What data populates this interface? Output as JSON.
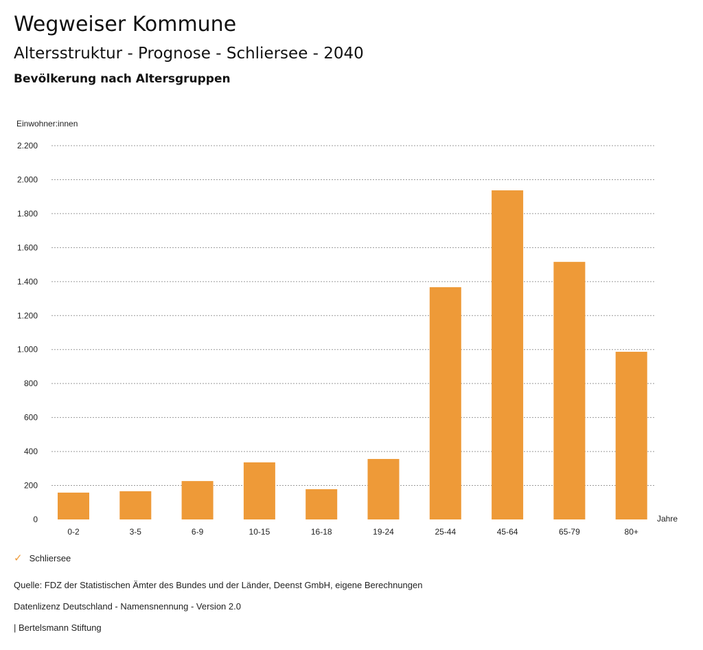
{
  "header": {
    "title": "Wegweiser Kommune",
    "subtitle": "Altersstruktur - Prognose - Schliersee - 2040",
    "chart_title": "Bevölkerung nach Altersgruppen"
  },
  "chart_data": {
    "type": "bar",
    "title": "Bevölkerung nach Altersgruppen",
    "ylabel": "Einwohner:innen",
    "xlabel": "Jahre",
    "ylim": [
      0,
      2200
    ],
    "yticks": [
      0,
      200,
      400,
      600,
      800,
      1000,
      1200,
      1400,
      1600,
      1800,
      2000,
      2200
    ],
    "ytick_labels": [
      "0",
      "200",
      "400",
      "600",
      "800",
      "1.000",
      "1.200",
      "1.400",
      "1.600",
      "1.800",
      "2.000",
      "2.200"
    ],
    "grid": true,
    "categories": [
      "0-2",
      "3-5",
      "6-9",
      "10-15",
      "16-18",
      "19-24",
      "25-44",
      "45-64",
      "65-79",
      "80+"
    ],
    "series": [
      {
        "name": "Schliersee",
        "color": "#ee9a38",
        "values": [
          158,
          166,
          226,
          336,
          178,
          356,
          1367,
          1937,
          1516,
          987
        ]
      }
    ],
    "legend_position": "bottom-left"
  },
  "legend": {
    "icon": "check-icon",
    "label": "Schliersee"
  },
  "footer": {
    "source": "Quelle: FDZ der Statistischen Ämter des Bundes und der Länder, Deenst GmbH, eigene Berechnungen",
    "license": "Datenlizenz Deutschland - Namensnennung - Version 2.0",
    "brand": "| Bertelsmann Stiftung"
  }
}
